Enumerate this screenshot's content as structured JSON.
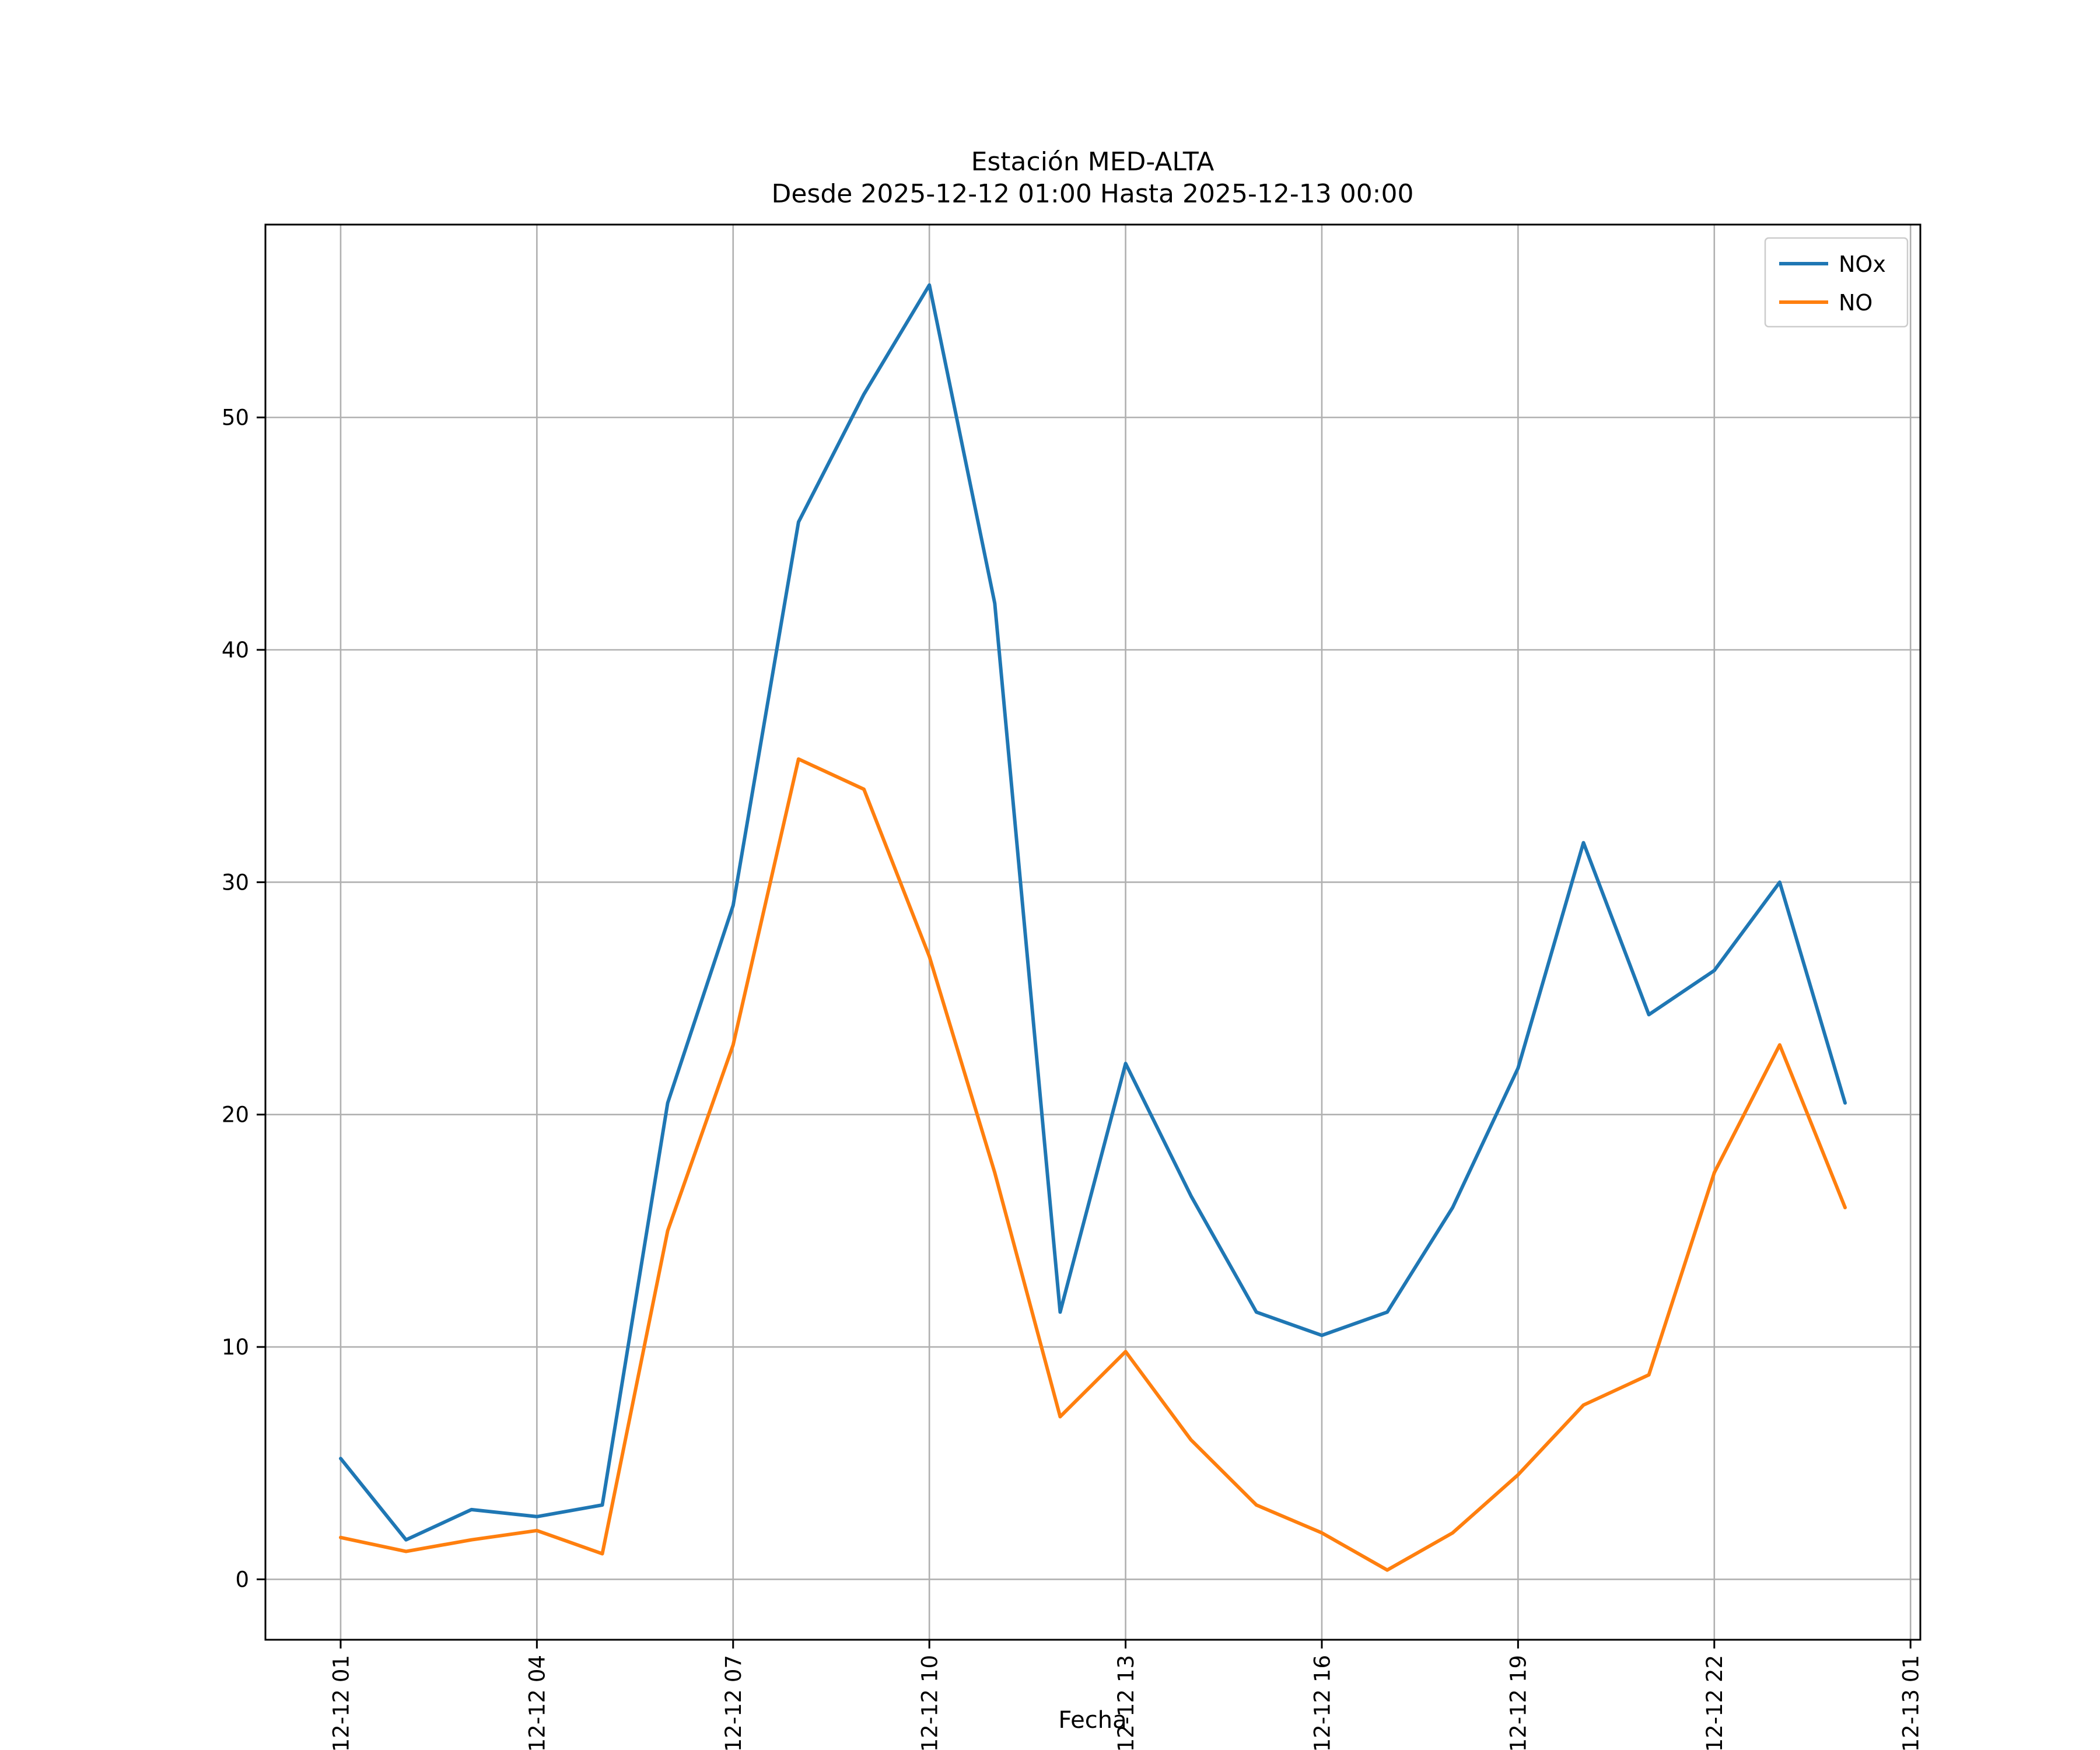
{
  "chart_data": {
    "type": "line",
    "title": "Estación MED-ALTA",
    "subtitle": "Desde 2025-12-12 01:00 Hasta 2025-12-13 00:00",
    "xlabel": "Fecha",
    "ylabel": "",
    "grid": true,
    "legend_position": "upper right",
    "xlim": [
      -0.15,
      25.15
    ],
    "ylim": [
      -2.6,
      58.3
    ],
    "x_hours": [
      1,
      2,
      3,
      4,
      5,
      6,
      7,
      8,
      9,
      10,
      11,
      12,
      13,
      14,
      15,
      16,
      17,
      18,
      19,
      20,
      21,
      22,
      23,
      24
    ],
    "x_tick_hours": [
      1,
      4,
      7,
      10,
      13,
      16,
      19,
      22,
      25
    ],
    "x_tick_labels": [
      "12-12 01",
      "12-12 04",
      "12-12 07",
      "12-12 10",
      "12-12 13",
      "12-12 16",
      "12-12 19",
      "12-12 22",
      "12-13 01"
    ],
    "y_ticks": [
      0,
      10,
      20,
      30,
      40,
      50
    ],
    "grid_color": "#b0b0b0",
    "series": [
      {
        "name": "NOx",
        "color": "#1f77b4",
        "values": [
          5.2,
          1.7,
          3.0,
          2.7,
          3.2,
          20.5,
          29.0,
          45.5,
          51.0,
          55.7,
          42.0,
          11.5,
          22.2,
          16.5,
          11.5,
          10.5,
          11.5,
          16.0,
          22.0,
          31.7,
          24.3,
          26.2,
          30.0,
          20.5
        ]
      },
      {
        "name": "NO",
        "color": "#ff7f0e",
        "values": [
          1.8,
          1.2,
          1.7,
          2.1,
          1.1,
          15.0,
          23.0,
          35.3,
          34.0,
          26.8,
          17.5,
          7.0,
          9.8,
          6.0,
          3.2,
          2.0,
          0.4,
          2.0,
          4.5,
          7.5,
          8.8,
          17.5,
          23.0,
          16.0
        ]
      }
    ]
  }
}
